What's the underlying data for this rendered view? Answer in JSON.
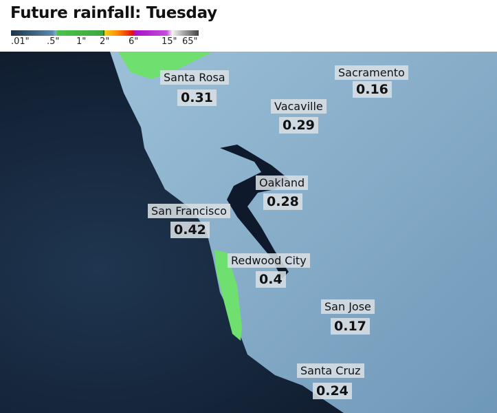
{
  "title": "Future rainfall: Tuesday",
  "legend": {
    "ticks": [
      ".01\"",
      ".5\"",
      "1\"",
      "2\"",
      "6\"",
      "15\"",
      "65\""
    ],
    "colors": [
      "#1d3448",
      "#7fb0d8",
      "#3ca83c",
      "#f2d21a",
      "#e41010",
      "#a810c8",
      "#f4f4f4",
      "#444444"
    ]
  },
  "colors": {
    "ocean": "#14243a",
    "land": "#86aecb",
    "bay": "#0e1a2c",
    "heavier_rain": "#6fe06f"
  },
  "cities": [
    {
      "name": "Santa Rosa",
      "value": "0.31"
    },
    {
      "name": "Sacramento",
      "value": "0.16"
    },
    {
      "name": "Vacaville",
      "value": "0.29"
    },
    {
      "name": "Oakland",
      "value": "0.28"
    },
    {
      "name": "San Francisco",
      "value": "0.42"
    },
    {
      "name": "Redwood City",
      "value": "0.4"
    },
    {
      "name": "San Jose",
      "value": "0.17"
    },
    {
      "name": "Santa Cruz",
      "value": "0.24"
    }
  ]
}
